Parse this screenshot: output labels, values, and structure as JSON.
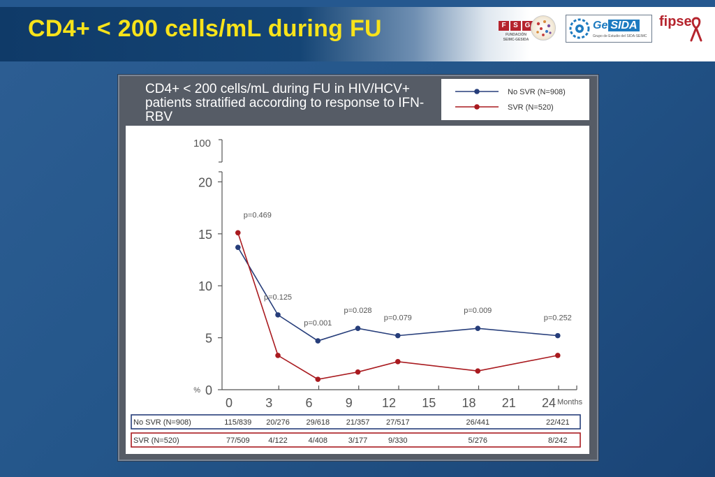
{
  "slide_title": "CD4+ < 200 cells/mL during FU",
  "logos": {
    "fsg": {
      "letters": [
        "F",
        "S",
        "G"
      ],
      "sub1": "FUNDACIÓN",
      "sub2": "SEIMC-GESIDA"
    },
    "gesida": {
      "ge": "Ge",
      "sida": "SIDA",
      "sub": "Grupo de Estudio del SIDA-SEIMC"
    },
    "fipse": {
      "text": "fipse"
    }
  },
  "colors": {
    "no_svr": "#263d7a",
    "svr": "#a91a1f",
    "title": "#f8e31a"
  },
  "chart_data": {
    "type": "line",
    "title": "CD4+ < 200 cells/mL during FU in HIV/HCV+ patients stratified according to response to IFN-RBV",
    "xlabel": "Months",
    "ylabel": "%",
    "x_ticks": [
      0,
      3,
      6,
      9,
      12,
      15,
      18,
      21,
      24
    ],
    "y_ticks": [
      0,
      5,
      10,
      15,
      20
    ],
    "y_break_tick": 100,
    "ylim": [
      0,
      20
    ],
    "xlim": [
      0,
      24
    ],
    "legend_position": "top-right",
    "series": [
      {
        "name": "No SVR (N=908)",
        "x": [
          0.67,
          3.67,
          6.67,
          9.67,
          12.67,
          18.67,
          24.67
        ],
        "values": [
          13.7,
          7.2,
          4.7,
          5.9,
          5.2,
          5.9,
          5.2
        ]
      },
      {
        "name": "SVR (N=520)",
        "x": [
          0.67,
          3.67,
          6.67,
          9.67,
          12.67,
          18.67,
          24.67
        ],
        "values": [
          15.1,
          3.3,
          1.0,
          1.7,
          2.7,
          1.8,
          3.3
        ]
      }
    ],
    "p_values": [
      {
        "x": 0.67,
        "label": "p=0.469"
      },
      {
        "x": 3.67,
        "label": "p=0.125"
      },
      {
        "x": 6.67,
        "label": "p=0.001"
      },
      {
        "x": 9.67,
        "label": "p=0.028"
      },
      {
        "x": 12.67,
        "label": "p=0.079"
      },
      {
        "x": 18.67,
        "label": "p=0.009"
      },
      {
        "x": 24.67,
        "label": "p=0.252"
      }
    ],
    "table": {
      "rows": [
        {
          "label": "No SVR (N=908)",
          "cells": [
            "115/839",
            "20/276",
            "29/618",
            "21/357",
            "27/517",
            "26/441",
            "22/421"
          ]
        },
        {
          "label": "SVR (N=520)",
          "cells": [
            "77/509",
            "4/122",
            "4/408",
            "3/177",
            "9/330",
            "5/276",
            "8/242"
          ]
        }
      ]
    }
  }
}
